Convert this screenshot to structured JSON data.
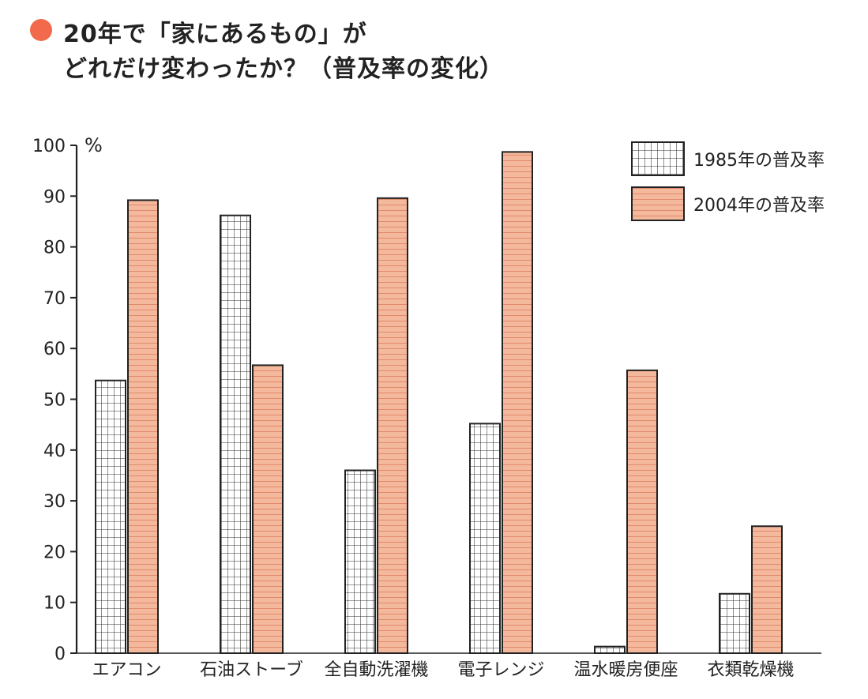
{
  "title": {
    "line1": "20年で「家にあるもの」が",
    "line2": "どれだけ変わったか？（普及率の変化）"
  },
  "colors": {
    "bullet": "#f26a4b",
    "series_2004": "#f4b89c",
    "series_2004_stripe": "#e08a6c",
    "series_1985": "#ffffff",
    "series_1985_grid": "#333333",
    "axis": "#222222"
  },
  "chart_data": {
    "type": "bar",
    "categories": [
      "エアコン",
      "石油ストーブ",
      "全自動洗濯機",
      "電子レンジ",
      "温水暖房便座",
      "衣類乾燥機"
    ],
    "series": [
      {
        "name": "1985年の普及率",
        "values": [
          53.7,
          86.2,
          36.0,
          45.2,
          1.3,
          11.7
        ]
      },
      {
        "name": "2004年の普及率",
        "values": [
          89.2,
          56.7,
          89.6,
          98.7,
          55.7,
          25.0
        ]
      }
    ],
    "ylim": [
      0,
      100
    ],
    "yticks": [
      0,
      10,
      20,
      30,
      40,
      50,
      60,
      70,
      80,
      90,
      100
    ],
    "yunit": "%",
    "legend_position": "top-right",
    "grid": false
  }
}
